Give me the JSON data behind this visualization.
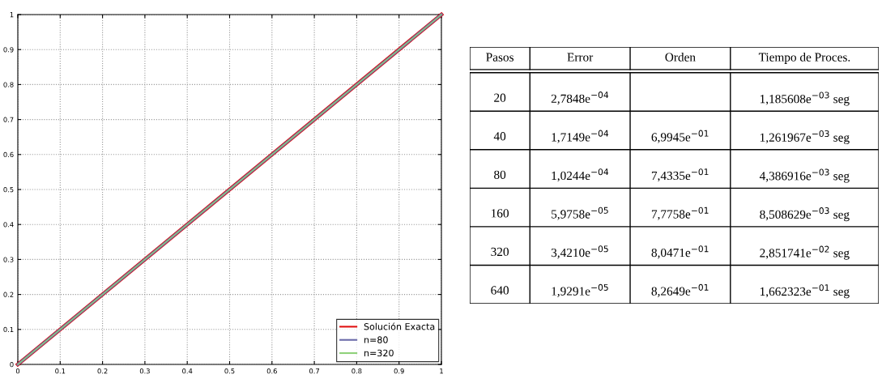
{
  "chart_data": [
    {
      "type": "line",
      "x": [
        0,
        1
      ],
      "xlim": [
        0,
        1
      ],
      "ylim": [
        0,
        1
      ],
      "xticks": [
        0,
        0.1,
        0.2,
        0.3,
        0.4,
        0.5,
        0.6,
        0.7,
        0.8,
        0.9,
        1
      ],
      "yticks": [
        0,
        0.1,
        0.2,
        0.3,
        0.4,
        0.5,
        0.6,
        0.7,
        0.8,
        0.9,
        1
      ],
      "grid": true,
      "legend": "bottom right",
      "series": [
        {
          "name": "Solución Exacta",
          "color": "#e01010",
          "values": [
            0,
            1
          ]
        },
        {
          "name": "n=80",
          "color": "#6a6aa8",
          "values": [
            0,
            1
          ]
        },
        {
          "name": "n=320",
          "color": "#8fd17a",
          "values": [
            0,
            1
          ]
        }
      ]
    },
    {
      "type": "other",
      "annotations": [
        "Pasos\tError\tOrden\tTiempo de Proces.",
        "20\t2,7848e$^{−04}$\t\t1,185608e$^{−03}$ seg",
        "40\t1,7149e$^{−04}$\t6,9945e$^{−01}$\t1,261967e$^{−03}$ seg",
        "80\t1,0244e$^{−04}$\t7,4335e$^{−01}$\t4,386916e$^{−03}$ seg",
        "160\t5,9758e$^{−05}$\t7,7758e$^{−01}$\t8,508629e$^{−03}$ seg",
        "320\t3,4210e$^{−05}$\t8,0471e$^{−01}$\t2,851741e$^{−02}$ seg",
        "640\t1,9291e$^{−05}$\t8,2649e$^{−01}$\t1,662323e$^{−01}$ seg"
      ]
    }
  ]
}
